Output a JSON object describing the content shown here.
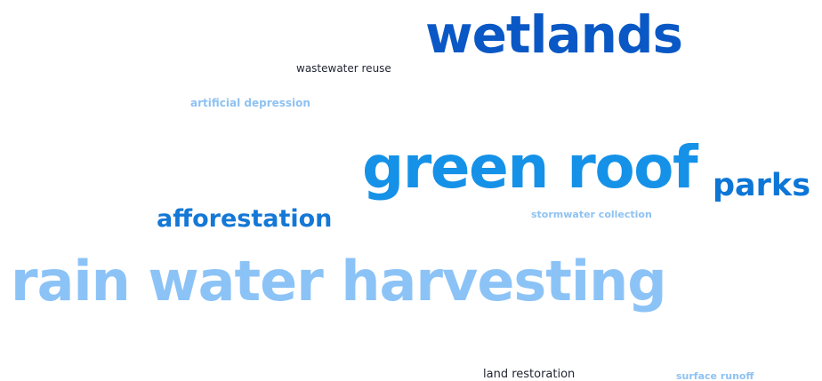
{
  "words": [
    {
      "text": "wetlands",
      "color": "#0a58c5"
    },
    {
      "text": "wastewater reuse",
      "color": "#1f2430"
    },
    {
      "text": "artificial depression",
      "color": "#8ec2f2"
    },
    {
      "text": "green roof",
      "color": "#1592e8"
    },
    {
      "text": "parks",
      "color": "#0d76d6"
    },
    {
      "text": "afforestation",
      "color": "#1478d6"
    },
    {
      "text": "stormwater collection",
      "color": "#8ec2f2"
    },
    {
      "text": "rain water harvesting",
      "color": "#8cc3f7"
    },
    {
      "text": "land restoration",
      "color": "#1f2430"
    },
    {
      "text": "surface runoff",
      "color": "#8ec2f2"
    }
  ]
}
